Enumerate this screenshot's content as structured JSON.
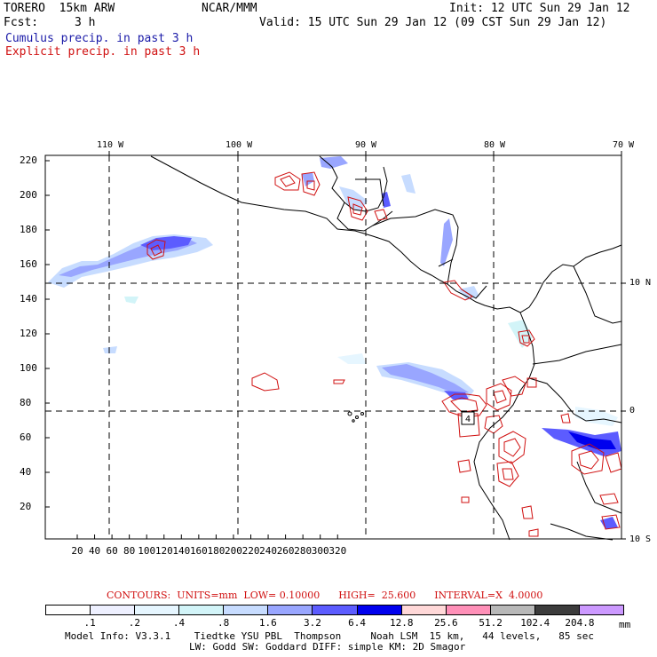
{
  "header": {
    "model": "TORERO  15km ARW",
    "org": "NCAR/MMM",
    "init": "Init: 12 UTC Sun 29 Jan 12",
    "fcst_label": "Fcst:",
    "fcst_value": "3 h",
    "valid": "Valid: 15 UTC Sun 29 Jan 12 (09 CST Sun 29 Jan 12)",
    "line_cumulus": "Cumulus precip. in past 3 h",
    "line_explicit": "Explicit precip. in past 3 h"
  },
  "map": {
    "top_labels": [
      "110 W",
      "100 W",
      "90 W",
      "80 W",
      "70 W"
    ],
    "right_labels": [
      "10 N",
      "0",
      "10 S"
    ],
    "left_ticks": [
      "220",
      "200",
      "180",
      "160",
      "140",
      "120",
      "100",
      "80",
      "60",
      "40",
      "20"
    ],
    "bottom_ticks": [
      "20",
      "40",
      "60",
      "80",
      "100",
      "120",
      "140",
      "160",
      "180",
      "200",
      "220",
      "240",
      "260",
      "280",
      "300",
      "320"
    ],
    "contour_label": "4"
  },
  "contours_line": "CONTOURS:  UNITS=mm  LOW= 0.10000      HIGH=  25.600      INTERVAL=X  4.0000",
  "colorbar": {
    "labels": [
      ".1",
      ".2",
      ".4",
      ".8",
      "1.6",
      "3.2",
      "6.4",
      "12.8",
      "25.6",
      "51.2",
      "102.4",
      "204.8"
    ],
    "units": "mm",
    "colors": [
      "#ffffff",
      "#eef0ff",
      "#e6f6ff",
      "#d2f4f8",
      "#c7dcff",
      "#99a6ff",
      "#5c5cff",
      "#0000ee",
      "#ffd8d8",
      "#ff90b8",
      "#b8b8b8",
      "#3c3c3c",
      "#cc99ff"
    ]
  },
  "model_info": {
    "line1": "Model Info: V3.3.1    Tiedtke YSU PBL  Thompson     Noah LSM  15 km,   44 levels,   85 sec",
    "line2": "LW: Godd SW: Goddard DIFF: simple KM: 2D Smagor"
  }
}
